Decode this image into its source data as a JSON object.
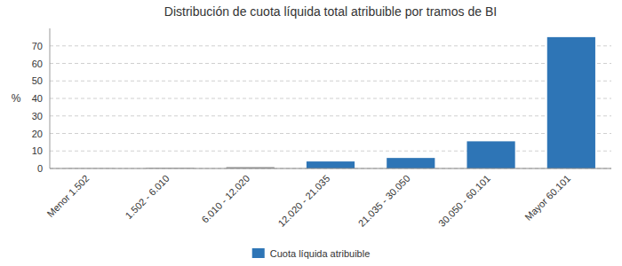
{
  "chart_data": {
    "type": "bar",
    "title": "Distribución de cuota líquida total atribuible por tramos de BI",
    "categories": [
      "Menor 1.502",
      "1.502 - 6.010",
      "6.010 - 12.020",
      "12.020 - 21.035",
      "21.035 - 30.050",
      "30.050 - 60.101",
      "Mayor 60.101"
    ],
    "series": [
      {
        "name": "Cuota líquida atribuible",
        "color": "#2e75b6",
        "colors": [
          "#999999",
          "#999999",
          "#999999",
          "#2e75b6",
          "#2e75b6",
          "#2e75b6",
          "#2e75b6"
        ],
        "values": [
          0.1,
          0.3,
          0.8,
          4.0,
          6.0,
          15.5,
          75.0
        ]
      }
    ],
    "ylabel": "%",
    "ylim": [
      0,
      80
    ],
    "yticks": [
      0,
      10,
      20,
      30,
      40,
      50,
      60,
      70
    ],
    "grid": true,
    "legend": "bottom"
  }
}
